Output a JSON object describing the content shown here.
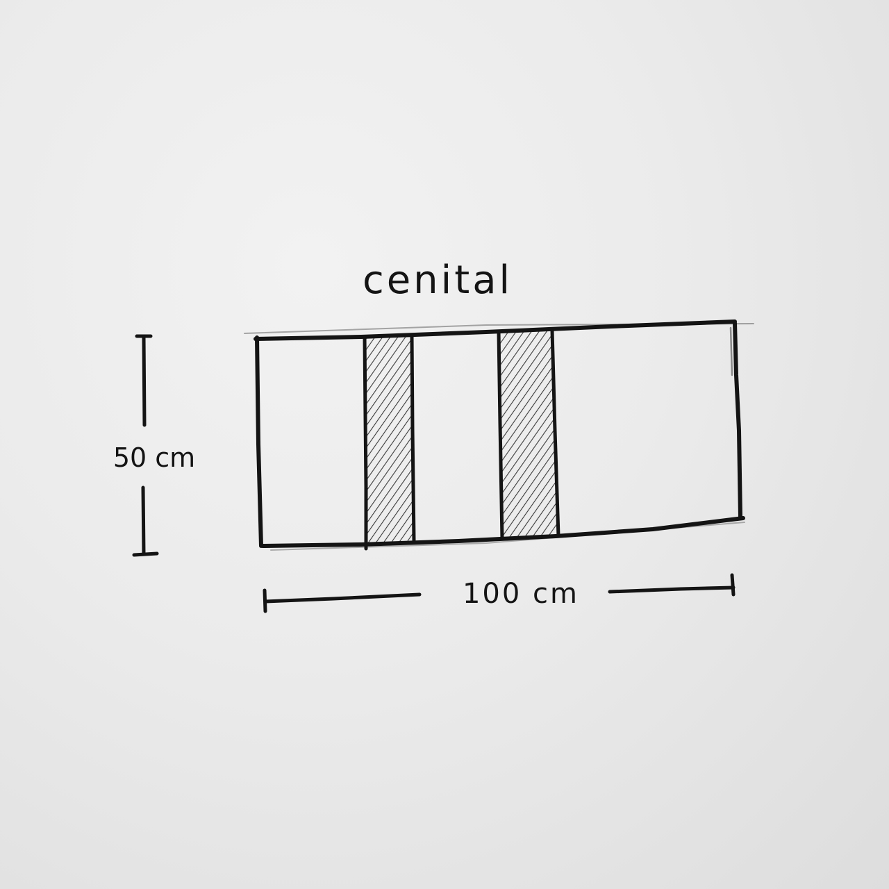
{
  "diagram": {
    "title": "cenital",
    "height_label": "50 cm",
    "width_label": "100 cm",
    "ink_color": "#141414",
    "paper_color": "#ececec"
  }
}
